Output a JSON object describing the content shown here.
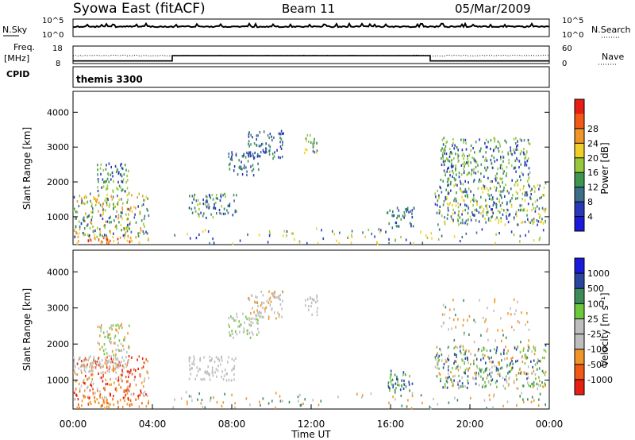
{
  "header": {
    "title": "Syowa East (fitACF)",
    "beam": "Beam 11",
    "date": "05/Mar/2009"
  },
  "panels": {
    "nsky": {
      "label": "N.Sky",
      "tick_top": "10^5",
      "tick_bottom": "10^0"
    },
    "nsearch": {
      "label": "N.Search",
      "tick_top": "10^5",
      "tick_bottom": "10^0"
    },
    "freq": {
      "label_line1": "Freq.",
      "label_line2": "[MHz]",
      "tick_top": "18",
      "tick_bottom": "8"
    },
    "nave": {
      "label": "Nave",
      "tick_top": "60",
      "tick_bottom": "0"
    },
    "cpid": {
      "label": "CPID",
      "value": "themis 3300"
    }
  },
  "colors": {
    "power": [
      "#1a1adc",
      "#2838b8",
      "#3c6e8c",
      "#3c9650",
      "#96c83c",
      "#f0d028",
      "#f09628",
      "#f05a14",
      "#e61e14"
    ],
    "velocity": [
      "#e61e14",
      "#f05a14",
      "#f09628",
      "#bebebe",
      "#bebebe",
      "#6ec83c",
      "#3c8c5a",
      "#2846a0",
      "#1a1adc"
    ]
  },
  "chart_data": [
    {
      "type": "heatmap",
      "name": "power",
      "ylabel": "Slant Range [km]",
      "yticks": [
        "1000",
        "2000",
        "3000",
        "4000"
      ],
      "ylim": [
        200,
        4600
      ],
      "xlim": [
        0,
        24
      ],
      "colorbar": {
        "label": "Power [dB]",
        "ticks": [
          "4",
          "8",
          "12",
          "16",
          "20",
          "24",
          "28"
        ]
      },
      "regions": [
        {
          "x": [
            0.0,
            3.9
          ],
          "y": [
            250,
            450
          ],
          "levels": [
            7,
            8,
            6,
            5
          ]
        },
        {
          "x": [
            0.0,
            3.8
          ],
          "y": [
            450,
            1700
          ],
          "levels": [
            3,
            4,
            5,
            2,
            1,
            6
          ]
        },
        {
          "x": [
            1.2,
            2.8
          ],
          "y": [
            1700,
            2600
          ],
          "levels": [
            1,
            3,
            4
          ]
        },
        {
          "x": [
            5.8,
            8.2
          ],
          "y": [
            1000,
            1700
          ],
          "levels": [
            1,
            2,
            3,
            4
          ]
        },
        {
          "x": [
            7.8,
            9.4
          ],
          "y": [
            2200,
            2900
          ],
          "levels": [
            1,
            2,
            3
          ]
        },
        {
          "x": [
            8.8,
            10.6
          ],
          "y": [
            2700,
            3500
          ],
          "levels": [
            1,
            2,
            3
          ]
        },
        {
          "x": [
            11.6,
            12.3
          ],
          "y": [
            2800,
            3400
          ],
          "levels": [
            2,
            3,
            4,
            5
          ]
        },
        {
          "x": [
            15.8,
            17.2
          ],
          "y": [
            700,
            1300
          ],
          "levels": [
            1,
            2,
            3
          ]
        },
        {
          "x": [
            18.2,
            23.8
          ],
          "y": [
            800,
            2000
          ],
          "levels": [
            1,
            2,
            3,
            4,
            5
          ]
        },
        {
          "x": [
            18.5,
            23.0
          ],
          "y": [
            2000,
            3300
          ],
          "levels": [
            1,
            3,
            4
          ]
        },
        {
          "x": [
            5.0,
            23.8
          ],
          "y": [
            250,
            700
          ],
          "levels": [
            1,
            2,
            4,
            5
          ]
        }
      ]
    },
    {
      "type": "heatmap",
      "name": "velocity",
      "ylabel": "Slant Range [km]",
      "yticks": [
        "1000",
        "2000",
        "3000",
        "4000"
      ],
      "ylim": [
        200,
        4600
      ],
      "xlim": [
        0,
        24
      ],
      "colorbar": {
        "label": "Velocity [m s⁻¹]",
        "ticks": [
          "1000",
          "500",
          "100",
          "25",
          "-25",
          "-100",
          "-500",
          "-1000"
        ]
      },
      "regions": [
        {
          "x": [
            0.0,
            3.9
          ],
          "y": [
            250,
            500
          ],
          "levels": [
            2,
            1,
            2
          ]
        },
        {
          "x": [
            0.0,
            3.8
          ],
          "y": [
            500,
            1700
          ],
          "levels": [
            2,
            1,
            3,
            0
          ]
        },
        {
          "x": [
            0.0,
            2.8
          ],
          "y": [
            1200,
            1700
          ],
          "levels": [
            3,
            4
          ]
        },
        {
          "x": [
            1.2,
            2.8
          ],
          "y": [
            1700,
            2600
          ],
          "levels": [
            3,
            2,
            5
          ]
        },
        {
          "x": [
            5.8,
            8.2
          ],
          "y": [
            1000,
            1700
          ],
          "levels": [
            3,
            4
          ]
        },
        {
          "x": [
            7.8,
            9.4
          ],
          "y": [
            2200,
            2900
          ],
          "levels": [
            3,
            4,
            5
          ]
        },
        {
          "x": [
            8.8,
            10.6
          ],
          "y": [
            2700,
            3500
          ],
          "levels": [
            3,
            4,
            2
          ]
        },
        {
          "x": [
            11.6,
            12.3
          ],
          "y": [
            2800,
            3400
          ],
          "levels": [
            3,
            4
          ]
        },
        {
          "x": [
            15.8,
            17.2
          ],
          "y": [
            700,
            1300
          ],
          "levels": [
            6,
            7,
            5
          ]
        },
        {
          "x": [
            18.2,
            23.8
          ],
          "y": [
            800,
            2000
          ],
          "levels": [
            3,
            6,
            7,
            2,
            5
          ]
        },
        {
          "x": [
            18.5,
            23.0
          ],
          "y": [
            2000,
            3300
          ],
          "levels": [
            3,
            6,
            2
          ]
        },
        {
          "x": [
            5.0,
            23.8
          ],
          "y": [
            250,
            700
          ],
          "levels": [
            2,
            3,
            6
          ]
        }
      ]
    }
  ],
  "freq_series": {
    "x": [
      0,
      5.0,
      5.0,
      18.0,
      18.0,
      24
    ],
    "y": [
      9.5,
      9.5,
      12.5,
      12.5,
      9.5,
      9.5
    ],
    "ylim": [
      8,
      18
    ]
  },
  "time_axis": {
    "label": "Time UT",
    "ticks": [
      "00:00",
      "04:00",
      "08:00",
      "12:00",
      "16:00",
      "20:00",
      "00:00"
    ]
  }
}
